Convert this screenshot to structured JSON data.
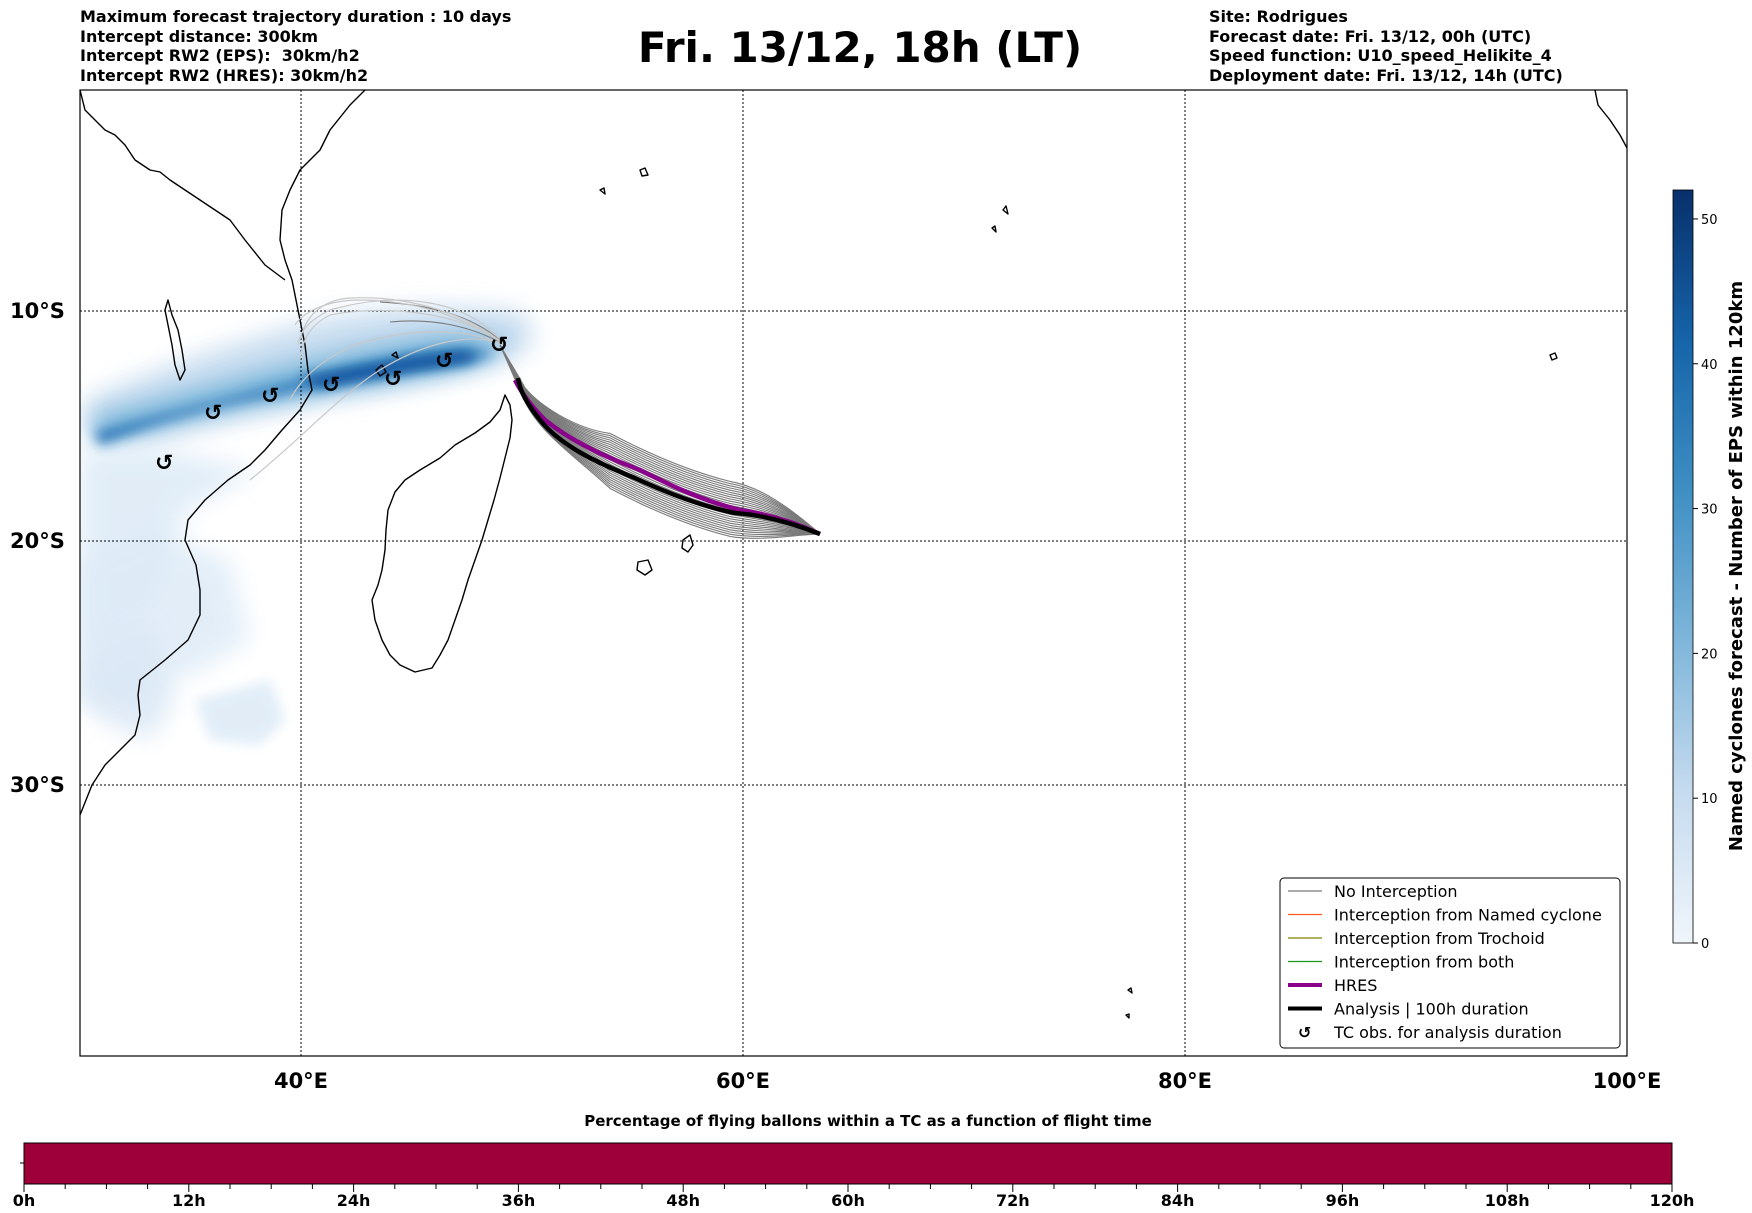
{
  "header": {
    "left": [
      "Maximum forecast trajectory duration : 10 days",
      "Intercept distance: 300km",
      "Intercept RW2 (EPS):  30km/h2",
      "Intercept RW2 (HRES): 30km/h2"
    ],
    "title": "Fri. 13/12, 18h (LT)",
    "right": [
      "Site: Rodrigues",
      "Forecast date: Fri. 13/12, 00h (UTC)",
      "Speed function: U10_speed_Helikite_4",
      "Deployment date: Fri. 13/12, 14h (UTC)"
    ]
  },
  "map": {
    "lat_labels": [
      "10°S",
      "20°S",
      "30°S"
    ],
    "lon_labels": [
      "40°E",
      "60°E",
      "80°E",
      "100°E"
    ],
    "colors": {
      "no_interception": "#7a7a7a",
      "named_cyclone": "#ff5a1f",
      "trochoid": "#808000",
      "both": "#1a9a1a",
      "hres": "#8b008b",
      "analysis": "#000000"
    }
  },
  "legend": {
    "items": [
      {
        "label": "No Interception",
        "color": "#7a7a7a",
        "width": 1.2,
        "kind": "line"
      },
      {
        "label": "Interception from Named cyclone",
        "color": "#ff5a1f",
        "width": 1.2,
        "kind": "line"
      },
      {
        "label": "Interception from Trochoid",
        "color": "#808000",
        "width": 1.2,
        "kind": "line"
      },
      {
        "label": "Interception from both",
        "color": "#1a9a1a",
        "width": 1.2,
        "kind": "line"
      },
      {
        "label": "HRES",
        "color": "#8b008b",
        "width": 4,
        "kind": "line"
      },
      {
        "label": "Analysis | 100h duration",
        "color": "#000000",
        "width": 4,
        "kind": "line"
      },
      {
        "label": "TC obs. for analysis duration",
        "color": "#000000",
        "kind": "symbol",
        "symbol": "↺"
      }
    ]
  },
  "colorbar": {
    "label": "Named cyclones forecast - Number of EPS within 120km",
    "ticks": [
      "0",
      "10",
      "20",
      "30",
      "40",
      "50"
    ],
    "min": 0,
    "max": 52,
    "color_low": "#f0f5fb",
    "color_high": "#08306b"
  },
  "bottom_bar": {
    "title": "Percentage of flying ballons within a TC as a function of flight time",
    "ticks": [
      "0h",
      "12h",
      "24h",
      "36h",
      "48h",
      "60h",
      "72h",
      "84h",
      "96h",
      "108h",
      "120h"
    ],
    "color": "#9e003a",
    "fill_fraction": 1.0
  }
}
